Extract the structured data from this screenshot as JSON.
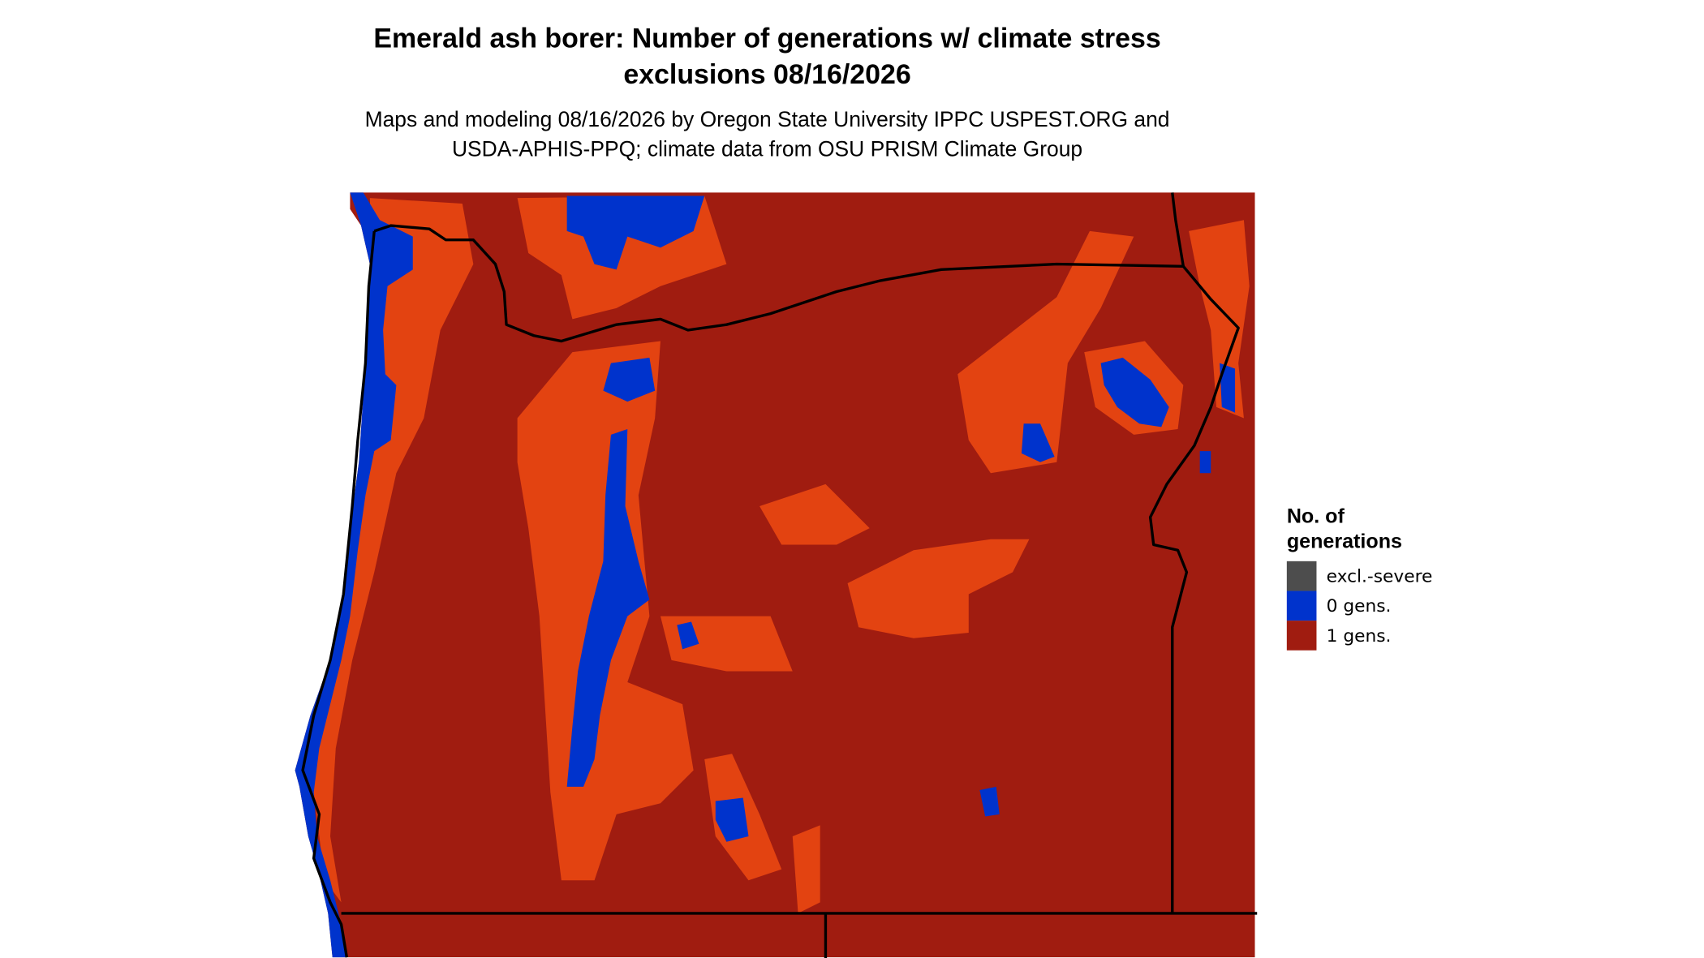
{
  "title": [
    "Emerald ash borer: Number of generations w/ climate stress",
    "exclusions 08/16/2026"
  ],
  "subtitle": [
    "Maps and modeling 08/16/2026 by Oregon State University IPPC USPEST.ORG and",
    "USDA-APHIS-PPQ; climate data from OSU PRISM Climate Group"
  ],
  "legend": {
    "title": [
      "No. of",
      "generations"
    ],
    "items": [
      {
        "label": "excl.-severe",
        "color": "#4d4d4d"
      },
      {
        "label": "0 gens.",
        "color": "#0033cc"
      },
      {
        "label": "1 gens.",
        "color": "#a01c10"
      }
    ]
  }
}
